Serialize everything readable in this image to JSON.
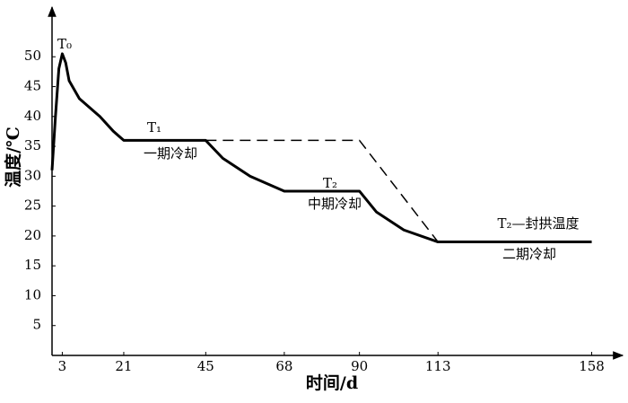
{
  "chart_data": {
    "type": "line",
    "xlabel": "时间/d",
    "ylabel": "温度/℃",
    "xlim": [
      0,
      166
    ],
    "ylim": [
      0,
      58
    ],
    "xticks": [
      3,
      21,
      45,
      68,
      90,
      113,
      158
    ],
    "yticks": [
      5,
      10,
      15,
      20,
      25,
      30,
      35,
      40,
      45,
      50
    ],
    "series": [
      {
        "color": "#000000",
        "line_style": "solid",
        "x": [
          0,
          1,
          2,
          3,
          4,
          5,
          8,
          14,
          18,
          21,
          45,
          50,
          58,
          68,
          90,
          95,
          103,
          113,
          158
        ],
        "values": [
          31,
          40,
          48,
          50.5,
          49,
          46,
          43,
          40,
          37.5,
          36,
          36,
          33,
          30,
          27.5,
          27.5,
          24,
          21,
          19,
          19
        ]
      },
      {
        "color": "#000000",
        "line_style": "dashed",
        "x": [
          45,
          90,
          113
        ],
        "values": [
          36,
          36,
          19
        ]
      }
    ],
    "annotations": [
      "T₀",
      "T₁",
      "一期冷却",
      "T₂",
      "中期冷却",
      "T₂—封拱温度",
      "二期冷却"
    ]
  }
}
